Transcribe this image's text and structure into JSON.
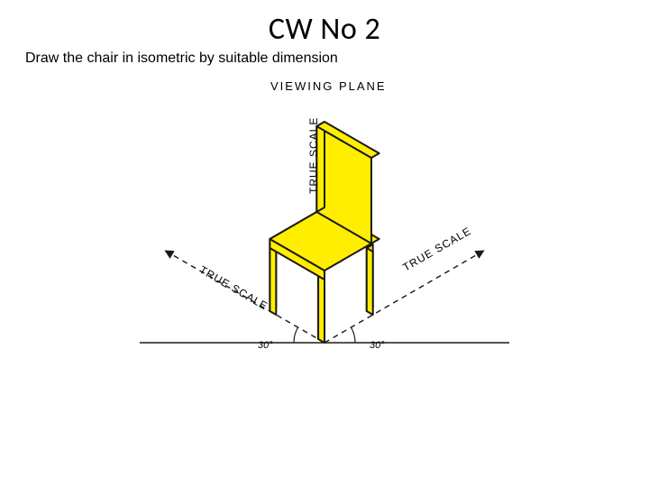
{
  "heading": {
    "title": "CW No 2",
    "subtitle": "Draw the chair in isometric by suitable dimension"
  },
  "diagram": {
    "type": "isometric-drawing",
    "viewing_plane_label": "VIEWING PLANE",
    "true_scale_label": "TRUE SCALE",
    "angle_label": "30°",
    "colors": {
      "fill": "#ffee00",
      "stroke": "#1a1a1a",
      "background": "#ffffff",
      "text": "#000000"
    },
    "iso_angle_deg": 30,
    "stroke_width": 2,
    "dash_pattern": "6 5",
    "title_fontsize": 34,
    "subtitle_fontsize": 16,
    "label_fontsize": 12,
    "angle_label_fontsize": 11
  }
}
